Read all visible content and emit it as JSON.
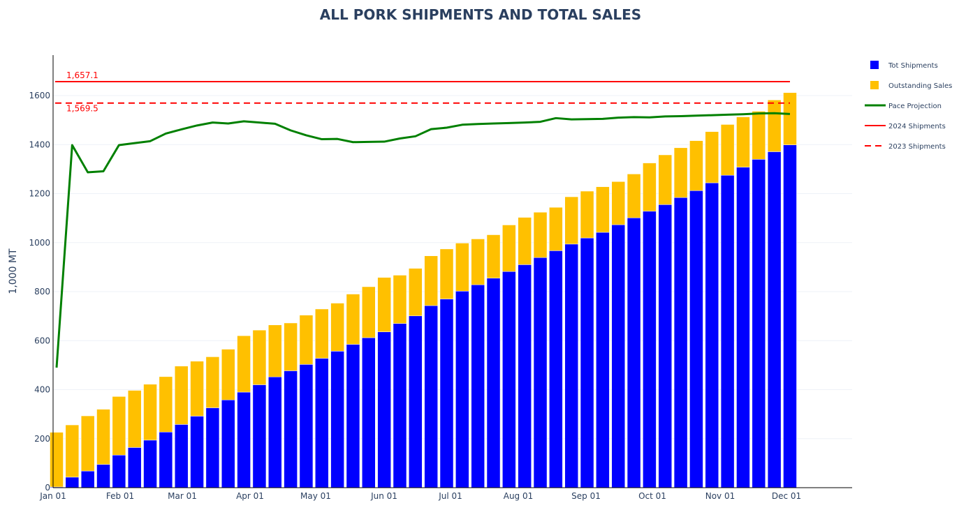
{
  "chart_data": {
    "type": "bar",
    "title": "ALL PORK SHIPMENTS AND TOTAL SALES",
    "xlabel": "",
    "ylabel": "1,000 MT",
    "ylim": [
      0,
      1760
    ],
    "yticks": [
      0,
      200,
      400,
      600,
      800,
      1000,
      1200,
      1400,
      1600
    ],
    "xticks": [
      "Jan 01",
      "Feb 01",
      "Mar 01",
      "Apr 01",
      "May 01",
      "Jun 01",
      "Jul 01",
      "Aug 01",
      "Sep 01",
      "Oct 01",
      "Nov 01",
      "Dec 01"
    ],
    "grid": true,
    "legend_position": "right",
    "barmode": "stack",
    "n_weeks": 48,
    "series": [
      {
        "name": "Tot Shipments",
        "kind": "bar",
        "color": "#0000ff",
        "values": [
          3,
          43,
          68,
          95,
          133,
          164,
          194,
          227,
          258,
          292,
          326,
          358,
          390,
          420,
          452,
          477,
          503,
          528,
          557,
          585,
          612,
          636,
          670,
          701,
          743,
          770,
          802,
          828,
          855,
          882,
          910,
          939,
          967,
          994,
          1019,
          1042,
          1073,
          1101,
          1128,
          1155,
          1184,
          1212,
          1244,
          1275,
          1308,
          1340,
          1371,
          1399
        ]
      },
      {
        "name": "Outstanding Sales",
        "kind": "bar",
        "color": "#ffc000",
        "values": [
          223,
          213,
          225,
          225,
          239,
          233,
          228,
          226,
          238,
          224,
          208,
          207,
          230,
          223,
          212,
          195,
          201,
          201,
          196,
          205,
          208,
          222,
          197,
          194,
          203,
          204,
          196,
          187,
          177,
          190,
          193,
          185,
          177,
          193,
          191,
          186,
          176,
          179,
          197,
          203,
          203,
          204,
          209,
          207,
          205,
          196,
          211,
          213
        ]
      },
      {
        "name": "Pace Projection",
        "kind": "line",
        "color": "#008000",
        "values": [
          490,
          1398,
          1287,
          1291,
          1398,
          1406,
          1414,
          1445,
          1462,
          1478,
          1490,
          1486,
          1495,
          1490,
          1485,
          1458,
          1438,
          1422,
          1423,
          1410,
          1411,
          1412,
          1425,
          1434,
          1463,
          1469,
          1481,
          1484,
          1486,
          1488,
          1490,
          1493,
          1508,
          1503,
          1504,
          1505,
          1510,
          1512,
          1511,
          1515,
          1516,
          1518,
          1520,
          1522,
          1524,
          1527,
          1528,
          1525
        ]
      },
      {
        "name": "2024 Shipments",
        "kind": "hline",
        "color": "#ff0000",
        "dash": "solid",
        "value": 1657.1,
        "label": "1,657.1"
      },
      {
        "name": "2023 Shipments",
        "kind": "hline",
        "color": "#ff0000",
        "dash": "dash",
        "value": 1569.5,
        "label": "1,569.5"
      }
    ]
  }
}
